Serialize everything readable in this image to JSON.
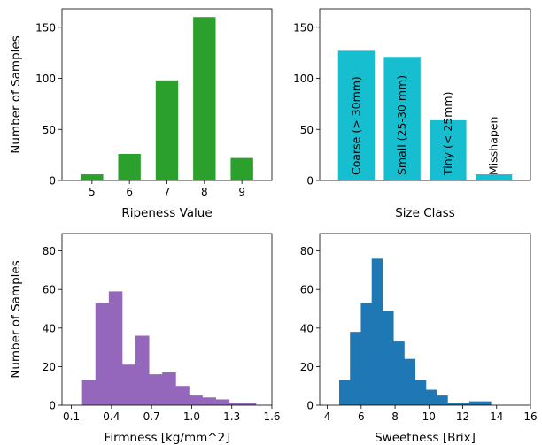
{
  "chart_data": [
    {
      "type": "bar",
      "id": "ripeness",
      "xlabel": "Ripeness Value",
      "ylabel": "Number of Samples",
      "color": "#2ca02c",
      "categories": [
        "5",
        "6",
        "7",
        "8",
        "9"
      ],
      "values": [
        6,
        26,
        98,
        160,
        22
      ],
      "ylim": [
        0,
        168
      ],
      "yticks": [
        0,
        50,
        100,
        150
      ]
    },
    {
      "type": "bar",
      "id": "size",
      "xlabel": "Size Class",
      "ylabel": "",
      "color": "#17becf",
      "categories": [
        "Coarse (> 30mm)",
        "Small (25-30 mm)",
        "Tiny (< 25mm)",
        "Misshapen"
      ],
      "values": [
        127,
        121,
        59,
        6
      ],
      "ylim": [
        0,
        168
      ],
      "yticks": [
        0,
        50,
        100,
        150
      ]
    },
    {
      "type": "histogram",
      "id": "firmness",
      "xlabel": "Firmness [kg/mm^2]",
      "ylabel": "Number of Samples",
      "color": "#9467bd",
      "bin_edges": [
        0.18,
        0.28,
        0.38,
        0.48,
        0.58,
        0.68,
        0.78,
        0.88,
        0.98,
        1.08,
        1.18,
        1.28,
        1.38,
        1.48
      ],
      "counts": [
        13,
        53,
        59,
        21,
        36,
        16,
        17,
        10,
        5,
        4,
        3,
        1,
        1
      ],
      "xlim": [
        0.03,
        1.6
      ],
      "ylim": [
        0,
        89
      ],
      "xticks": [
        0.1,
        0.4,
        0.7,
        1.0,
        1.3,
        1.6
      ],
      "xtick_labels": [
        "0.1",
        "0.4",
        "0.7",
        "1.0",
        "1.3",
        "1.6"
      ],
      "yticks": [
        0,
        20,
        40,
        60,
        80
      ]
    },
    {
      "type": "histogram",
      "id": "sweetness",
      "xlabel": "Sweetness [Brix]",
      "ylabel": "",
      "color": "#1f77b4",
      "bin_edges": [
        4.7,
        5.34,
        5.98,
        6.62,
        7.26,
        7.9,
        8.54,
        9.18,
        9.82,
        10.46,
        11.1,
        11.74,
        12.38,
        13.02,
        13.66,
        14.3
      ],
      "counts": [
        13,
        38,
        53,
        76,
        49,
        33,
        24,
        13,
        8,
        5,
        1,
        1,
        2,
        2,
        0
      ],
      "xlim": [
        3.55,
        16.0
      ],
      "ylim": [
        0,
        89
      ],
      "xticks": [
        4,
        6,
        8,
        10,
        12,
        14,
        16
      ],
      "xtick_labels": [
        "4",
        "6",
        "8",
        "10",
        "12",
        "14",
        "16"
      ],
      "yticks": [
        0,
        20,
        40,
        60,
        80
      ]
    }
  ]
}
